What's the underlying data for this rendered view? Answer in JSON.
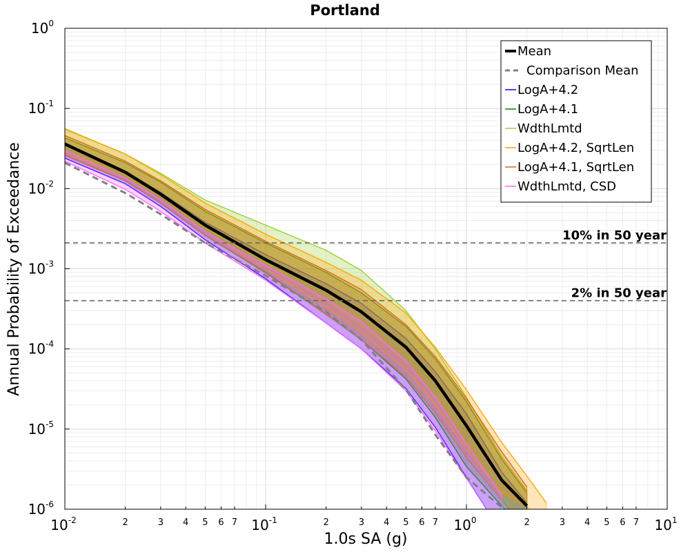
{
  "chart_data": {
    "type": "line",
    "title": "Portland",
    "xlabel": "1.0s SA (g)",
    "ylabel": "Annual Probability of Exceedance",
    "x_scale": "log",
    "y_scale": "log",
    "xlim": [
      0.01,
      10
    ],
    "ylim": [
      1e-06,
      1
    ],
    "grid": true,
    "legend_position": "top-right",
    "x_major_ticks": [
      {
        "value": 0.01,
        "base": "10",
        "exp": "-2"
      },
      {
        "value": 0.1,
        "base": "10",
        "exp": "-1"
      },
      {
        "value": 1,
        "base": "10",
        "exp": "0"
      },
      {
        "value": 10,
        "base": "10",
        "exp": "1"
      }
    ],
    "x_minor_tick_labels": [
      "2",
      "3",
      "4",
      "5",
      "6",
      "7"
    ],
    "y_major_ticks": [
      {
        "value": 1,
        "base": "10",
        "exp": "0"
      },
      {
        "value": 0.1,
        "base": "10",
        "exp": "-1"
      },
      {
        "value": 0.01,
        "base": "10",
        "exp": "-2"
      },
      {
        "value": 0.001,
        "base": "10",
        "exp": "-3"
      },
      {
        "value": 0.0001,
        "base": "10",
        "exp": "-4"
      },
      {
        "value": 1e-05,
        "base": "10",
        "exp": "-5"
      },
      {
        "value": 1e-06,
        "base": "10",
        "exp": "-6"
      }
    ],
    "x": [
      0.01,
      0.02,
      0.03,
      0.05,
      0.1,
      0.2,
      0.3,
      0.5,
      0.7,
      1.0,
      1.5,
      2.0,
      2.5,
      3.0
    ],
    "series": [
      {
        "name": "Mean",
        "color": "#000000",
        "style": "thick",
        "values": [
          0.036,
          0.016,
          0.0085,
          0.0035,
          0.0013,
          0.00054,
          0.00029,
          0.000105,
          4e-05,
          1.1e-05,
          2.3e-06,
          1.1e-06,
          null,
          null
        ]
      },
      {
        "name": "Comparison Mean",
        "color": "#808080",
        "style": "dashed",
        "values": [
          0.021,
          0.0088,
          0.0048,
          0.0021,
          0.00082,
          0.00029,
          0.00013,
          3.1e-05,
          8.5e-06,
          2.5e-06,
          1.05e-06,
          null,
          null,
          null
        ]
      },
      {
        "name": "LogA+4.2",
        "color": "#0000ff",
        "style": "band",
        "band_low": [
          0.024,
          0.0115,
          0.006,
          0.0023,
          0.00075,
          0.00021,
          0.0001,
          3.2e-05,
          1.05e-05,
          2.5e-06,
          null,
          null,
          null,
          null
        ],
        "band_high": [
          0.035,
          0.0165,
          0.009,
          0.0038,
          0.0015,
          0.00065,
          0.00037,
          0.000135,
          5.2e-05,
          1.55e-05,
          2.9e-06,
          1.2e-06,
          null,
          null
        ]
      },
      {
        "name": "LogA+4.1",
        "color": "#008000",
        "style": "band",
        "band_low": [
          0.026,
          0.0125,
          0.0066,
          0.0026,
          0.0009,
          0.00027,
          0.00013,
          4.2e-05,
          1.4e-05,
          3.4e-06,
          1.1e-06,
          null,
          null,
          null
        ],
        "band_high": [
          0.043,
          0.021,
          0.012,
          0.0052,
          0.0021,
          0.0009,
          0.0005,
          0.00019,
          7.5e-05,
          2.2e-05,
          4.2e-06,
          1.6e-06,
          null,
          null
        ]
      },
      {
        "name": "WdthLmtd",
        "color": "#9acd32",
        "style": "band",
        "band_low": [
          0.03,
          0.0145,
          0.008,
          0.0032,
          0.0012,
          0.0004,
          0.0002,
          7e-05,
          2.5e-05,
          6.5e-06,
          1.5e-06,
          null,
          null,
          null
        ],
        "band_high": [
          0.055,
          0.027,
          0.0155,
          0.0072,
          0.0035,
          0.0017,
          0.00095,
          0.0003,
          0.0001,
          2.5e-05,
          4.5e-06,
          1.7e-06,
          null,
          null
        ]
      },
      {
        "name": "LogA+4.2, SqrtLen",
        "color": "#ffa500",
        "style": "band",
        "band_low": [
          0.028,
          0.0135,
          0.0072,
          0.0029,
          0.001,
          0.00033,
          0.00016,
          5.5e-05,
          2e-05,
          5.5e-06,
          1.6e-06,
          1.1e-06,
          null,
          null
        ],
        "band_high": [
          0.056,
          0.027,
          0.015,
          0.0066,
          0.0027,
          0.0012,
          0.00072,
          0.00028,
          0.000105,
          3.1e-05,
          6.8e-06,
          2.6e-06,
          1.2e-06,
          null
        ]
      },
      {
        "name": "LogA+4.1, SqrtLen",
        "color": "#d2691e",
        "style": "band",
        "band_low": [
          0.026,
          0.0125,
          0.0066,
          0.0026,
          0.00088,
          0.00027,
          0.00013,
          4.5e-05,
          1.6e-05,
          4.4e-06,
          1.3e-06,
          null,
          null,
          null
        ],
        "band_high": [
          0.046,
          0.022,
          0.0125,
          0.0055,
          0.0022,
          0.00095,
          0.00055,
          0.0002,
          8e-05,
          2.4e-05,
          5.2e-06,
          1.9e-06,
          null,
          null
        ]
      },
      {
        "name": "WdthLmtd, CSD",
        "color": "#ff66ff",
        "style": "band",
        "band_low": [
          0.022,
          0.0098,
          0.0052,
          0.0021,
          0.00072,
          0.00021,
          0.0001,
          3e-05,
          9.5e-06,
          2.4e-06,
          null,
          null,
          null,
          null
        ],
        "band_high": [
          0.03,
          0.0135,
          0.0072,
          0.0029,
          0.0011,
          0.00042,
          0.00022,
          7e-05,
          2.5e-05,
          6.5e-06,
          1.5e-06,
          null,
          null,
          null
        ]
      }
    ],
    "reference_lines": [
      {
        "label": "10% in 50 year",
        "y": 0.0021
      },
      {
        "label": "2% in 50 year",
        "y": 0.0004
      }
    ]
  }
}
